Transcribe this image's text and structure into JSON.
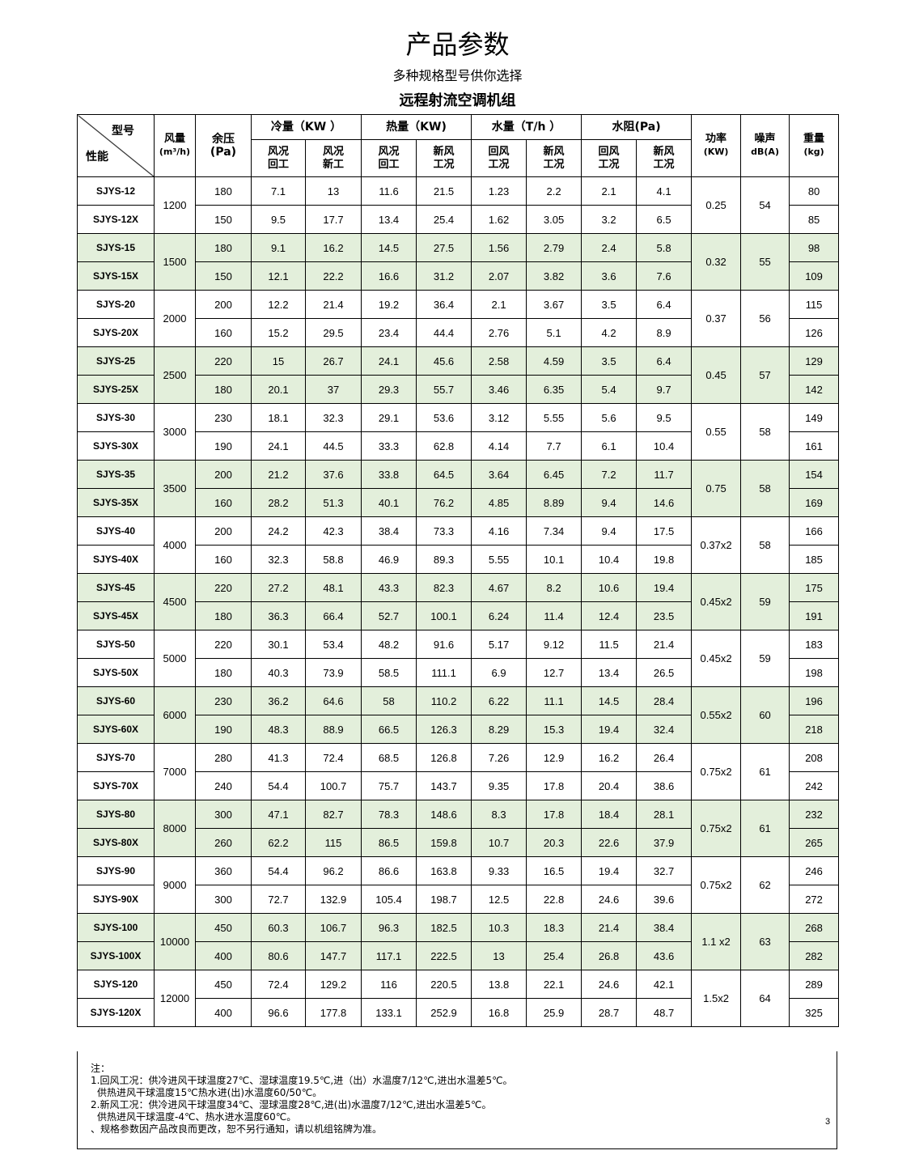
{
  "title": "产品参数",
  "subtitle": "多种规格型号供你选择",
  "table_title": "远程射流空调机组",
  "header": {
    "diag_top": "型号",
    "diag_bottom": "性能",
    "airflow": "风量",
    "airflow_unit": "(m³/h)",
    "pressure": "余压",
    "pressure_unit": "(Pa)",
    "cooling": "冷量（KW ）",
    "heating": "热量（KW)",
    "water": "水量（T/h ）",
    "resistance": "水阻(Pa)",
    "power": "功率",
    "power_unit": "(KW)",
    "noise": "噪声",
    "noise_unit": "dB(A)",
    "weight": "重量",
    "weight_unit": "(kg)",
    "sub": [
      "风况\n回工",
      "风况\n新工",
      "风况\n回工",
      "新风\n工况",
      "回风\n工况",
      "新风\n工况",
      "回风\n工况",
      "新风\n工况"
    ]
  },
  "colors": {
    "green_row": "#e3efdb"
  },
  "groups": [
    {
      "airflow": "1200",
      "power": "0.25",
      "noise": "54",
      "green": false,
      "rows": [
        {
          "model": "SJYS-12",
          "pressure": "180",
          "values": [
            "7.1",
            "13",
            "11.6",
            "21.5",
            "1.23",
            "2.2",
            "2.1",
            "4.1"
          ],
          "weight": "80"
        },
        {
          "model": "SJYS-12X",
          "pressure": "150",
          "values": [
            "9.5",
            "17.7",
            "13.4",
            "25.4",
            "1.62",
            "3.05",
            "3.2",
            "6.5"
          ],
          "weight": "85"
        }
      ]
    },
    {
      "airflow": "1500",
      "power": "0.32",
      "noise": "55",
      "green": true,
      "rows": [
        {
          "model": "SJYS-15",
          "pressure": "180",
          "values": [
            "9.1",
            "16.2",
            "14.5",
            "27.5",
            "1.56",
            "2.79",
            "2.4",
            "5.8"
          ],
          "weight": "98"
        },
        {
          "model": "SJYS-15X",
          "pressure": "150",
          "values": [
            "12.1",
            "22.2",
            "16.6",
            "31.2",
            "2.07",
            "3.82",
            "3.6",
            "7.6"
          ],
          "weight": "109"
        }
      ]
    },
    {
      "airflow": "2000",
      "power": "0.37",
      "noise": "56",
      "green": false,
      "rows": [
        {
          "model": "SJYS-20",
          "pressure": "200",
          "values": [
            "12.2",
            "21.4",
            "19.2",
            "36.4",
            "2.1",
            "3.67",
            "3.5",
            "6.4"
          ],
          "weight": "115"
        },
        {
          "model": "SJYS-20X",
          "pressure": "160",
          "values": [
            "15.2",
            "29.5",
            "23.4",
            "44.4",
            "2.76",
            "5.1",
            "4.2",
            "8.9"
          ],
          "weight": "126"
        }
      ]
    },
    {
      "airflow": "2500",
      "power": "0.45",
      "noise": "57",
      "green": true,
      "rows": [
        {
          "model": "SJYS-25",
          "pressure": "220",
          "values": [
            "15",
            "26.7",
            "24.1",
            "45.6",
            "2.58",
            "4.59",
            "3.5",
            "6.4"
          ],
          "weight": "129"
        },
        {
          "model": "SJYS-25X",
          "pressure": "180",
          "values": [
            "20.1",
            "37",
            "29.3",
            "55.7",
            "3.46",
            "6.35",
            "5.4",
            "9.7"
          ],
          "weight": "142"
        }
      ]
    },
    {
      "airflow": "3000",
      "power": "0.55",
      "noise": "58",
      "green": false,
      "rows": [
        {
          "model": "SJYS-30",
          "pressure": "230",
          "values": [
            "18.1",
            "32.3",
            "29.1",
            "53.6",
            "3.12",
            "5.55",
            "5.6",
            "9.5"
          ],
          "weight": "149"
        },
        {
          "model": "SJYS-30X",
          "pressure": "190",
          "values": [
            "24.1",
            "44.5",
            "33.3",
            "62.8",
            "4.14",
            "7.7",
            "6.1",
            "10.4"
          ],
          "weight": "161"
        }
      ]
    },
    {
      "airflow": "3500",
      "power": "0.75",
      "noise": "58",
      "green": true,
      "rows": [
        {
          "model": "SJYS-35",
          "pressure": "200",
          "values": [
            "21.2",
            "37.6",
            "33.8",
            "64.5",
            "3.64",
            "6.45",
            "7.2",
            "11.7"
          ],
          "weight": "154"
        },
        {
          "model": "SJYS-35X",
          "pressure": "160",
          "values": [
            "28.2",
            "51.3",
            "40.1",
            "76.2",
            "4.85",
            "8.89",
            "9.4",
            "14.6"
          ],
          "weight": "169"
        }
      ]
    },
    {
      "airflow": "4000",
      "power": "0.37x2",
      "noise": "58",
      "green": false,
      "rows": [
        {
          "model": "SJYS-40",
          "pressure": "200",
          "values": [
            "24.2",
            "42.3",
            "38.4",
            "73.3",
            "4.16",
            "7.34",
            "9.4",
            "17.5"
          ],
          "weight": "166"
        },
        {
          "model": "SJYS-40X",
          "pressure": "160",
          "values": [
            "32.3",
            "58.8",
            "46.9",
            "89.3",
            "5.55",
            "10.1",
            "10.4",
            "19.8"
          ],
          "weight": "185"
        }
      ]
    },
    {
      "airflow": "4500",
      "power": "0.45x2",
      "noise": "59",
      "green": true,
      "rows": [
        {
          "model": "SJYS-45",
          "pressure": "220",
          "values": [
            "27.2",
            "48.1",
            "43.3",
            "82.3",
            "4.67",
            "8.2",
            "10.6",
            "19.4"
          ],
          "weight": "175"
        },
        {
          "model": "SJYS-45X",
          "pressure": "180",
          "values": [
            "36.3",
            "66.4",
            "52.7",
            "100.1",
            "6.24",
            "11.4",
            "12.4",
            "23.5"
          ],
          "weight": "191"
        }
      ]
    },
    {
      "airflow": "5000",
      "power": "0.45x2",
      "noise": "59",
      "green": false,
      "rows": [
        {
          "model": "SJYS-50",
          "pressure": "220",
          "values": [
            "30.1",
            "53.4",
            "48.2",
            "91.6",
            "5.17",
            "9.12",
            "11.5",
            "21.4"
          ],
          "weight": "183"
        },
        {
          "model": "SJYS-50X",
          "pressure": "180",
          "values": [
            "40.3",
            "73.9",
            "58.5",
            "111.1",
            "6.9",
            "12.7",
            "13.4",
            "26.5"
          ],
          "weight": "198"
        }
      ]
    },
    {
      "airflow": "6000",
      "power": "0.55x2",
      "noise": "60",
      "green": true,
      "rows": [
        {
          "model": "SJYS-60",
          "pressure": "230",
          "values": [
            "36.2",
            "64.6",
            "58",
            "110.2",
            "6.22",
            "11.1",
            "14.5",
            "28.4"
          ],
          "weight": "196"
        },
        {
          "model": "SJYS-60X",
          "pressure": "190",
          "values": [
            "48.3",
            "88.9",
            "66.5",
            "126.3",
            "8.29",
            "15.3",
            "19.4",
            "32.4"
          ],
          "weight": "218"
        }
      ]
    },
    {
      "airflow": "7000",
      "power": "0.75x2",
      "noise": "61",
      "green": false,
      "rows": [
        {
          "model": "SJYS-70",
          "pressure": "280",
          "values": [
            "41.3",
            "72.4",
            "68.5",
            "126.8",
            "7.26",
            "12.9",
            "16.2",
            "26.4"
          ],
          "weight": "208"
        },
        {
          "model": "SJYS-70X",
          "pressure": "240",
          "values": [
            "54.4",
            "100.7",
            "75.7",
            "143.7",
            "9.35",
            "17.8",
            "20.4",
            "38.6"
          ],
          "weight": "242"
        }
      ]
    },
    {
      "airflow": "8000",
      "power": "0.75x2",
      "noise": "61",
      "green": true,
      "rows": [
        {
          "model": "SJYS-80",
          "pressure": "300",
          "values": [
            "47.1",
            "82.7",
            "78.3",
            "148.6",
            "8.3",
            "17.8",
            "18.4",
            "28.1"
          ],
          "weight": "232"
        },
        {
          "model": "SJYS-80X",
          "pressure": "260",
          "values": [
            "62.2",
            "115",
            "86.5",
            "159.8",
            "10.7",
            "20.3",
            "22.6",
            "37.9"
          ],
          "weight": "265"
        }
      ]
    },
    {
      "airflow": "9000",
      "power": "0.75x2",
      "noise": "62",
      "green": false,
      "rows": [
        {
          "model": "SJYS-90",
          "pressure": "360",
          "values": [
            "54.4",
            "96.2",
            "86.6",
            "163.8",
            "9.33",
            "16.5",
            "19.4",
            "32.7"
          ],
          "weight": "246"
        },
        {
          "model": "SJYS-90X",
          "pressure": "300",
          "values": [
            "72.7",
            "132.9",
            "105.4",
            "198.7",
            "12.5",
            "22.8",
            "24.6",
            "39.6"
          ],
          "weight": "272"
        }
      ]
    },
    {
      "airflow": "10000",
      "power": "1.1 x2",
      "noise": "63",
      "green": true,
      "rows": [
        {
          "model": "SJYS-100",
          "pressure": "450",
          "values": [
            "60.3",
            "106.7",
            "96.3",
            "182.5",
            "10.3",
            "18.3",
            "21.4",
            "38.4"
          ],
          "weight": "268"
        },
        {
          "model": "SJYS-100X",
          "pressure": "400",
          "values": [
            "80.6",
            "147.7",
            "117.1",
            "222.5",
            "13",
            "25.4",
            "26.8",
            "43.6"
          ],
          "weight": "282"
        }
      ]
    },
    {
      "airflow": "12000",
      "power": "1.5x2",
      "noise": "64",
      "green": false,
      "rows": [
        {
          "model": "SJYS-120",
          "pressure": "450",
          "values": [
            "72.4",
            "129.2",
            "116",
            "220.5",
            "13.8",
            "22.1",
            "24.6",
            "42.1"
          ],
          "weight": "289"
        },
        {
          "model": "SJYS-120X",
          "pressure": "400",
          "values": [
            "96.6",
            "177.8",
            "133.1",
            "252.9",
            "16.8",
            "25.9",
            "28.7",
            "48.7"
          ],
          "weight": "325"
        }
      ]
    }
  ],
  "notes": [
    "注：",
    "1.回风工况：供冷进风干球温度27℃、湿球温度19.5℃,进（出）水温度7/12℃,进出水温差5℃。",
    "供热进风干球温度15℃热水进(出)水温度60/50℃。",
    "2.新风工况：供冷进风干球温度34℃、湿球温度28℃,进(出)水温度7/12℃,进出水温差5℃。",
    "供热进风干球温度-4℃、热水进水温度60℃。",
    "、规格参数因产品改良而更改，恕不另行通知，请以机组铭牌为准。"
  ],
  "page_number": "3"
}
